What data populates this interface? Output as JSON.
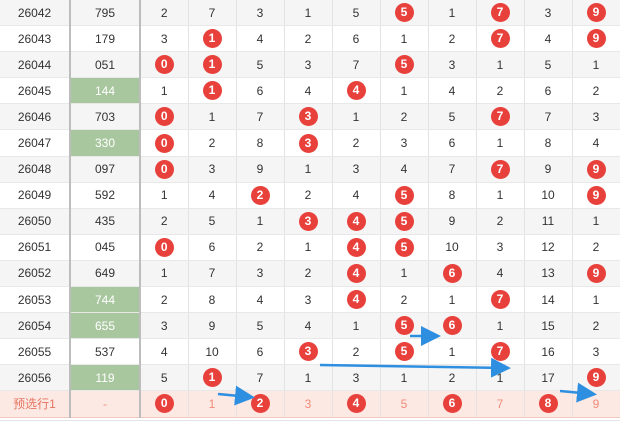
{
  "colors": {
    "ball": "#e8413c",
    "highlight": "#a9c79f",
    "prediction_row": "#fde9e4",
    "arrow": "#2e8fe0"
  },
  "rows": [
    {
      "issue": "26042",
      "code": "795",
      "hl": false,
      "cells": [
        2,
        7,
        3,
        1,
        5,
        5,
        1,
        7,
        3,
        9
      ],
      "balls": [
        5,
        7,
        9
      ]
    },
    {
      "issue": "26043",
      "code": "179",
      "hl": false,
      "cells": [
        3,
        1,
        4,
        2,
        6,
        1,
        2,
        7,
        4,
        9
      ],
      "balls": [
        1,
        7,
        9
      ]
    },
    {
      "issue": "26044",
      "code": "051",
      "hl": false,
      "cells": [
        0,
        1,
        5,
        3,
        7,
        5,
        3,
        1,
        5,
        1
      ],
      "balls": [
        0,
        1,
        5
      ]
    },
    {
      "issue": "26045",
      "code": "144",
      "hl": true,
      "cells": [
        1,
        1,
        6,
        4,
        4,
        1,
        4,
        2,
        6,
        2
      ],
      "balls": [
        1,
        4
      ]
    },
    {
      "issue": "26046",
      "code": "703",
      "hl": false,
      "cells": [
        0,
        1,
        7,
        3,
        1,
        2,
        5,
        7,
        7,
        3
      ],
      "balls": [
        0,
        3,
        7
      ]
    },
    {
      "issue": "26047",
      "code": "330",
      "hl": true,
      "cells": [
        0,
        2,
        8,
        3,
        2,
        3,
        6,
        1,
        8,
        4
      ],
      "balls": [
        0,
        3
      ]
    },
    {
      "issue": "26048",
      "code": "097",
      "hl": false,
      "cells": [
        0,
        3,
        9,
        1,
        3,
        4,
        7,
        7,
        9,
        9
      ],
      "balls": [
        0,
        7,
        9
      ]
    },
    {
      "issue": "26049",
      "code": "592",
      "hl": false,
      "cells": [
        1,
        4,
        2,
        2,
        4,
        5,
        8,
        1,
        10,
        9
      ],
      "balls": [
        2,
        5,
        9
      ]
    },
    {
      "issue": "26050",
      "code": "435",
      "hl": false,
      "cells": [
        2,
        5,
        1,
        3,
        4,
        5,
        9,
        2,
        11,
        1
      ],
      "balls": [
        3,
        4,
        5
      ]
    },
    {
      "issue": "26051",
      "code": "045",
      "hl": false,
      "cells": [
        0,
        6,
        2,
        1,
        4,
        5,
        10,
        3,
        12,
        2
      ],
      "balls": [
        0,
        4,
        5
      ]
    },
    {
      "issue": "26052",
      "code": "649",
      "hl": false,
      "cells": [
        1,
        7,
        3,
        2,
        4,
        1,
        6,
        4,
        13,
        9
      ],
      "balls": [
        4,
        6,
        9
      ]
    },
    {
      "issue": "26053",
      "code": "744",
      "hl": true,
      "cells": [
        2,
        8,
        4,
        3,
        4,
        2,
        1,
        7,
        14,
        1
      ],
      "balls": [
        4,
        7
      ]
    },
    {
      "issue": "26054",
      "code": "655",
      "hl": true,
      "cells": [
        3,
        9,
        5,
        4,
        1,
        5,
        6,
        1,
        15,
        2
      ],
      "balls": [
        5,
        6
      ]
    },
    {
      "issue": "26055",
      "code": "537",
      "hl": false,
      "cells": [
        4,
        10,
        6,
        3,
        2,
        5,
        1,
        7,
        16,
        3
      ],
      "balls": [
        3,
        5,
        7
      ]
    },
    {
      "issue": "26056",
      "code": "119",
      "hl": true,
      "cells": [
        5,
        1,
        7,
        1,
        3,
        1,
        2,
        1,
        17,
        9
      ],
      "balls": [
        1,
        9
      ]
    }
  ],
  "prediction": {
    "label": "预选行1",
    "code": "-",
    "cells": [
      0,
      1,
      2,
      3,
      4,
      5,
      6,
      7,
      8,
      9
    ],
    "balls": [
      0,
      2,
      4,
      6,
      8
    ]
  }
}
